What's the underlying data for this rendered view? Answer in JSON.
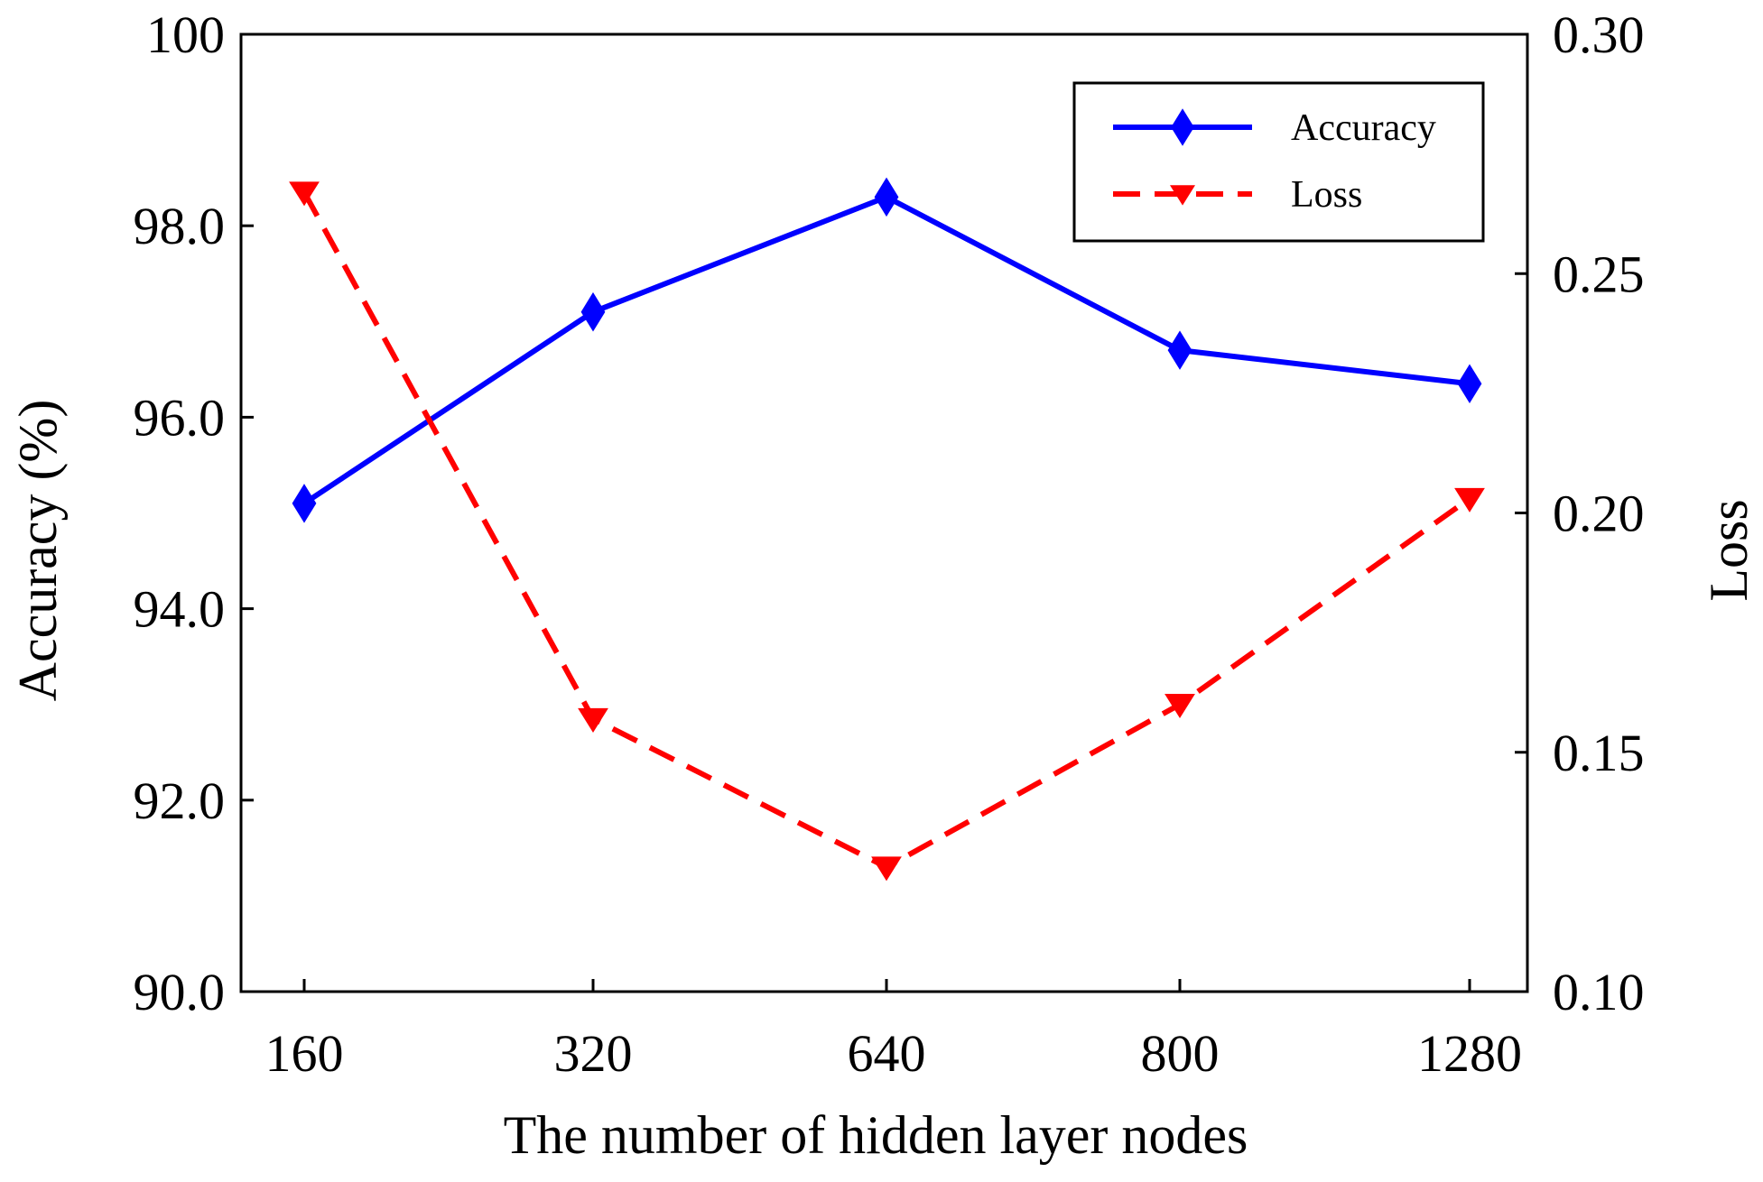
{
  "chart_data": {
    "type": "line",
    "categories": [
      "160",
      "320",
      "640",
      "800",
      "1280"
    ],
    "xlabel": "The number of hidden layer nodes",
    "ylabel": "Accuracy (%)",
    "y2label": "Loss",
    "ylim": [
      90.0,
      100.0
    ],
    "y2lim": [
      0.1,
      0.3
    ],
    "yticks": [
      "90.0",
      "92.0",
      "94.0",
      "96.0",
      "98.0",
      "100"
    ],
    "y2ticks": [
      "0.10",
      "0.15",
      "0.20",
      "0.25",
      "0.30"
    ],
    "legend_position": "top-right",
    "series": [
      {
        "name": "Accuracy",
        "axis": "left",
        "values": [
          95.1,
          97.1,
          98.3,
          96.7,
          96.35
        ],
        "color": "#0000ff",
        "style": "solid",
        "marker": "diamond"
      },
      {
        "name": "Loss",
        "axis": "right",
        "values": [
          0.267,
          0.157,
          0.126,
          0.16,
          0.203
        ],
        "color": "#ff0000",
        "style": "dashed",
        "marker": "triangle-down"
      }
    ]
  }
}
